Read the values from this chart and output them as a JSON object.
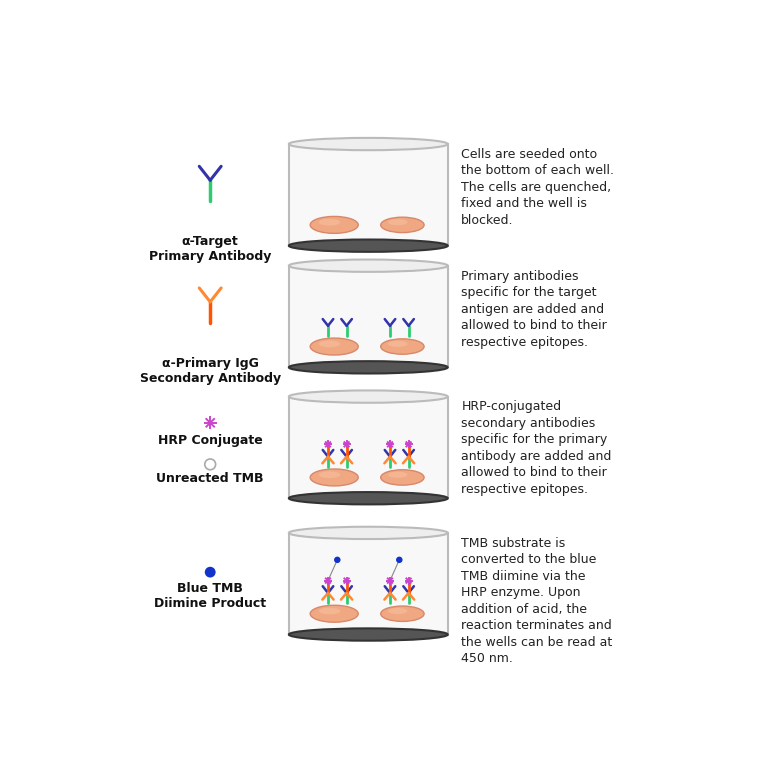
{
  "background_color": "#ffffff",
  "steps": [
    {
      "icon_label": "α-Target\nPrimary Antibody",
      "description": "Cells are seeded onto\nthe bottom of each well.\nThe cells are quenched,\nfixed and the well is\nblocked.",
      "step_type": "cells_only"
    },
    {
      "icon_label": "α-Primary IgG\nSecondary Antibody",
      "description": "Primary antibodies\nspecific for the target\nantigen are added and\nallowed to bind to their\nrespective epitopes.",
      "step_type": "primary_ab"
    },
    {
      "icon_label": "HRP Conjugate",
      "icon_label2": "Unreacted TMB",
      "description": "HRP-conjugated\nsecondary antibodies\nspecific for the primary\nantibody are added and\nallowed to bind to their\nrespective epitopes.",
      "step_type": "secondary_ab"
    },
    {
      "icon_label": "Blue TMB\nDiimine Product",
      "description": "TMB substrate is\nconverted to the blue\nTMB diimine via the\nHRP enzyme. Upon\naddition of acid, the\nreaction terminates and\nthe wells can be read at\n450 nm.",
      "step_type": "tmb_product"
    }
  ],
  "colors": {
    "well_border": "#bbbbbb",
    "well_fill": "#f5f5f5",
    "well_bottom": "#444444",
    "cell_fill": "#f0a882",
    "cell_edge": "#d8886a",
    "primary_stem": "#2ecc71",
    "primary_arms": "#3333aa",
    "secondary_stem": "#ff5500",
    "secondary_arms": "#ff8833",
    "hrp_color": "#cc44cc",
    "tmb_blue": "#1133cc",
    "tmb_ring": "#aaaaaa",
    "text_color": "#111111",
    "desc_color": "#222222"
  }
}
